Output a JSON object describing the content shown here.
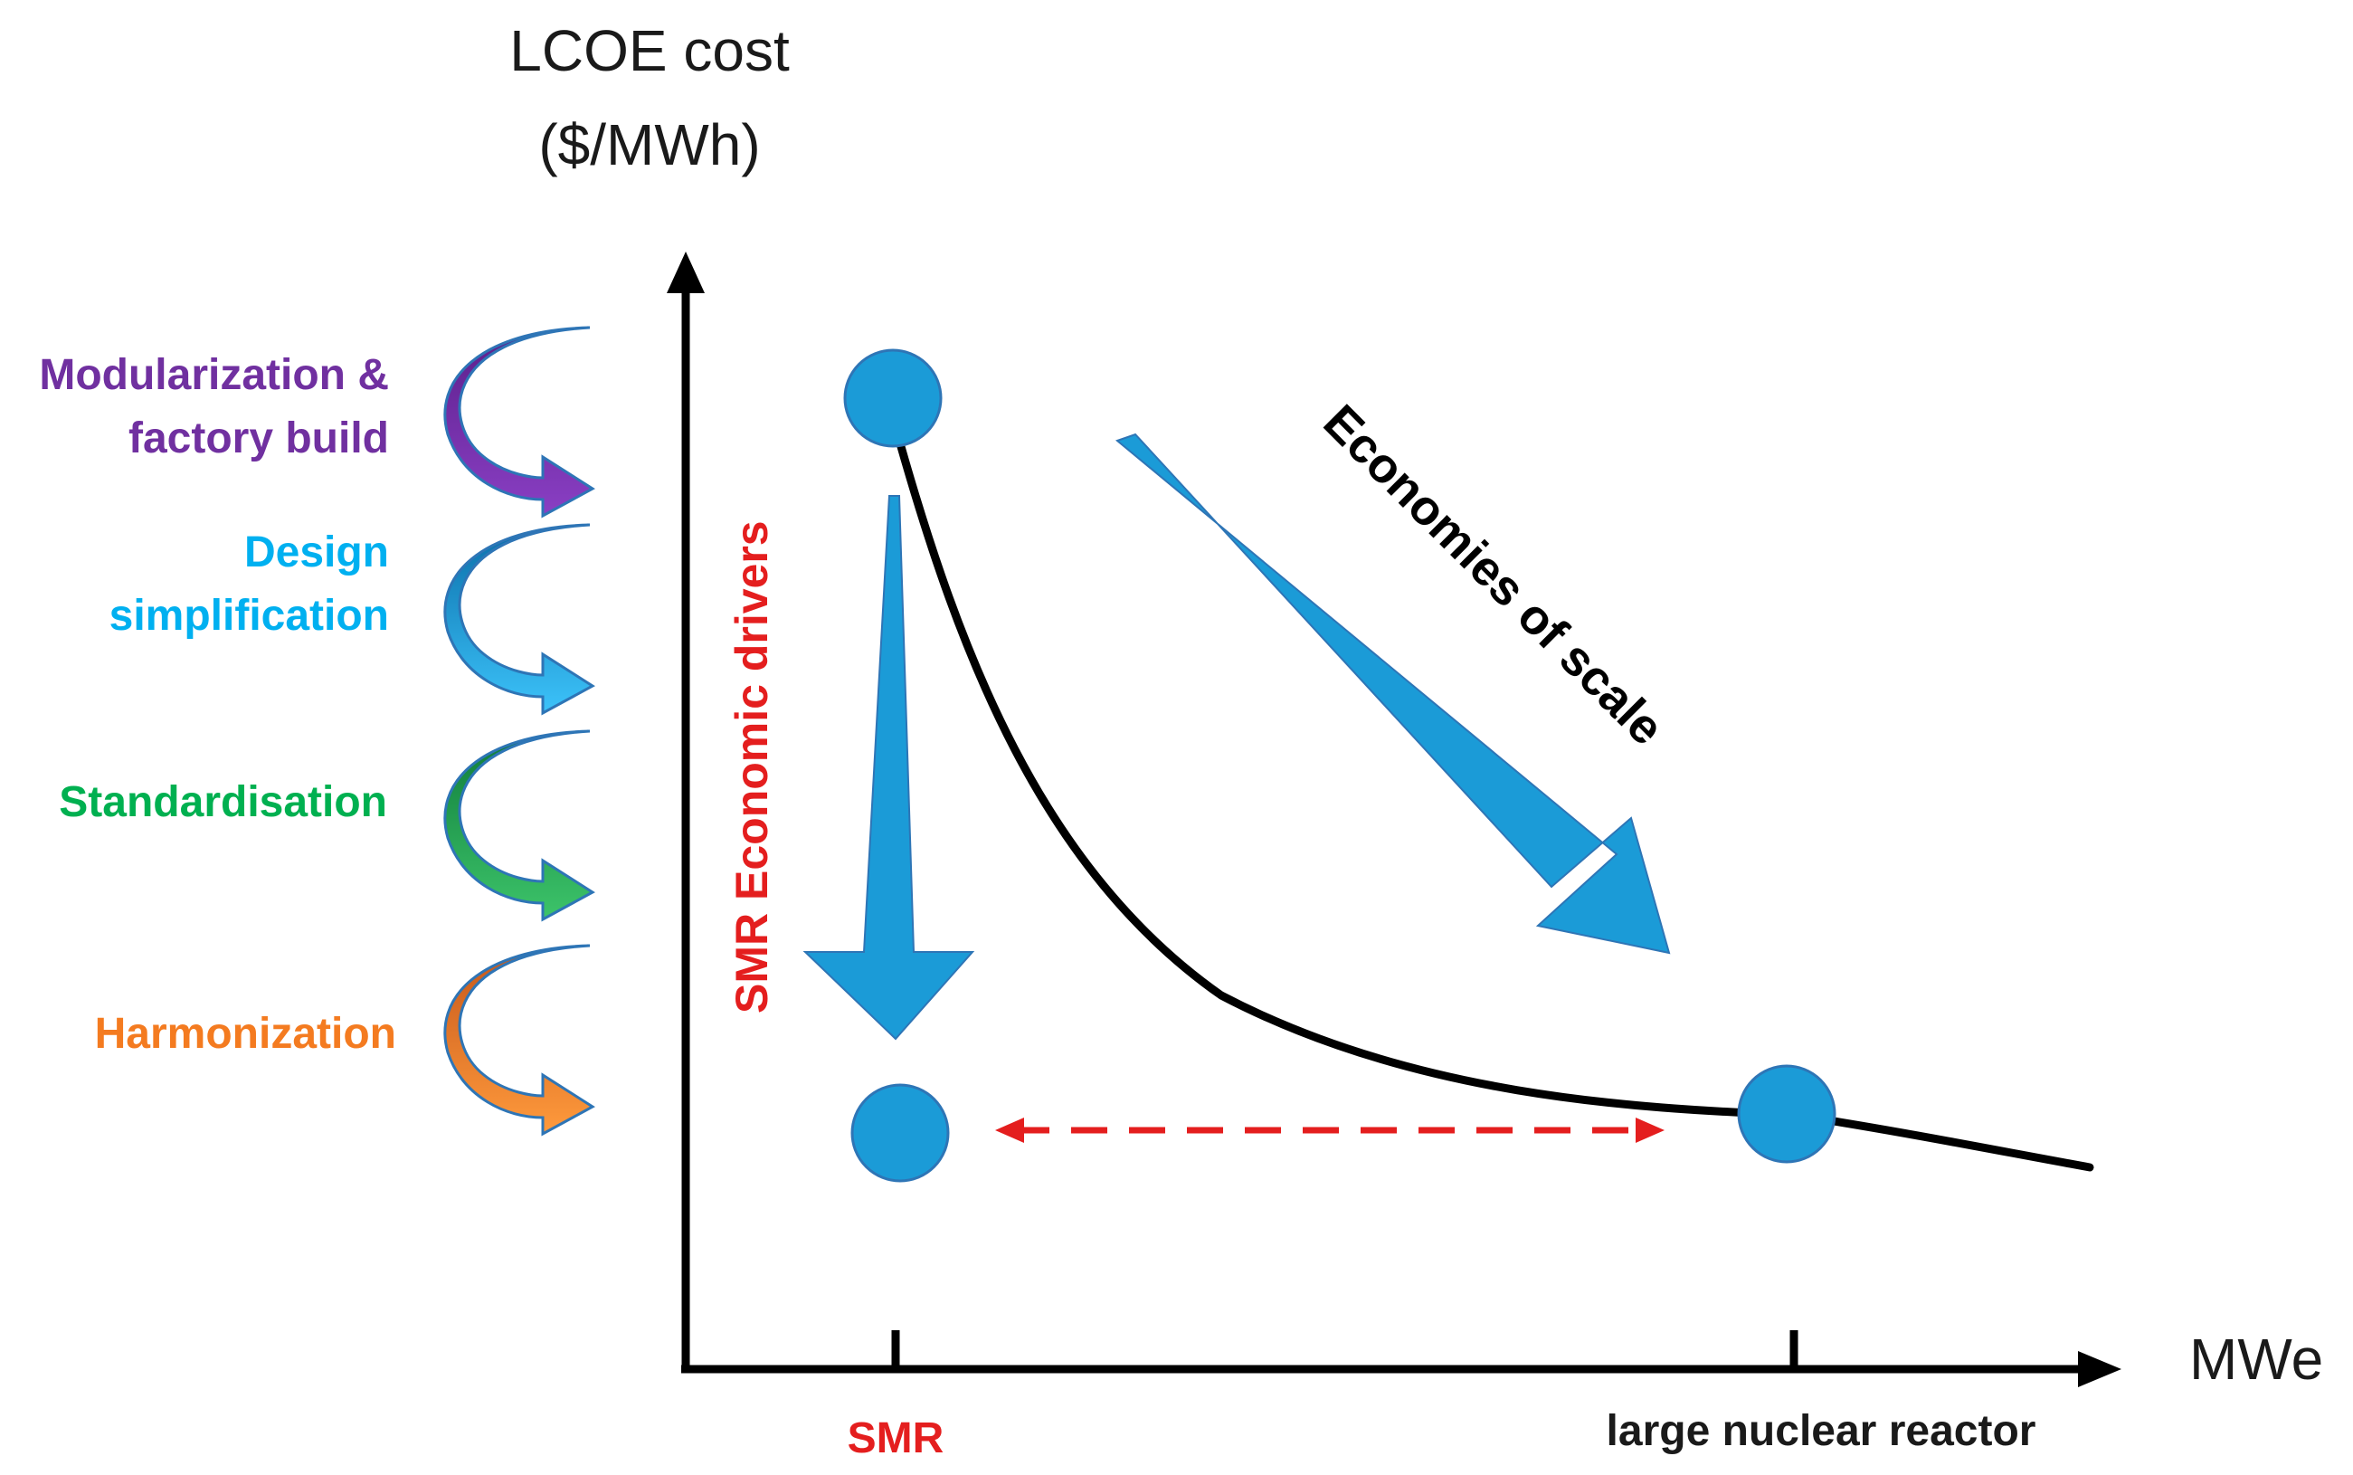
{
  "axes": {
    "y_label_line1": "LCOE cost",
    "y_label_line2": "($/MWh)",
    "x_label": "MWe",
    "x_tick_smr": "SMR",
    "x_tick_large": "large nuclear reactor"
  },
  "drivers": {
    "vertical_label": "SMR Economic drivers",
    "items": [
      {
        "line1": "Modularization &",
        "line2": "factory build",
        "color": "#7030A0"
      },
      {
        "line1": "Design",
        "line2": "simplification",
        "color": "#00B0F0"
      },
      {
        "line1": "Standardisation",
        "line2": "",
        "color": "#00B050"
      },
      {
        "line1": "Harmonization",
        "line2": "",
        "color": "#F47B20"
      }
    ]
  },
  "economies_label": "Economies of scale",
  "colors": {
    "marker": "#1B9BD7",
    "marker_stroke": "#2E75B6",
    "curve": "#000000",
    "dashed": "#E41E1E",
    "smr_label": "#E41E1E"
  }
}
